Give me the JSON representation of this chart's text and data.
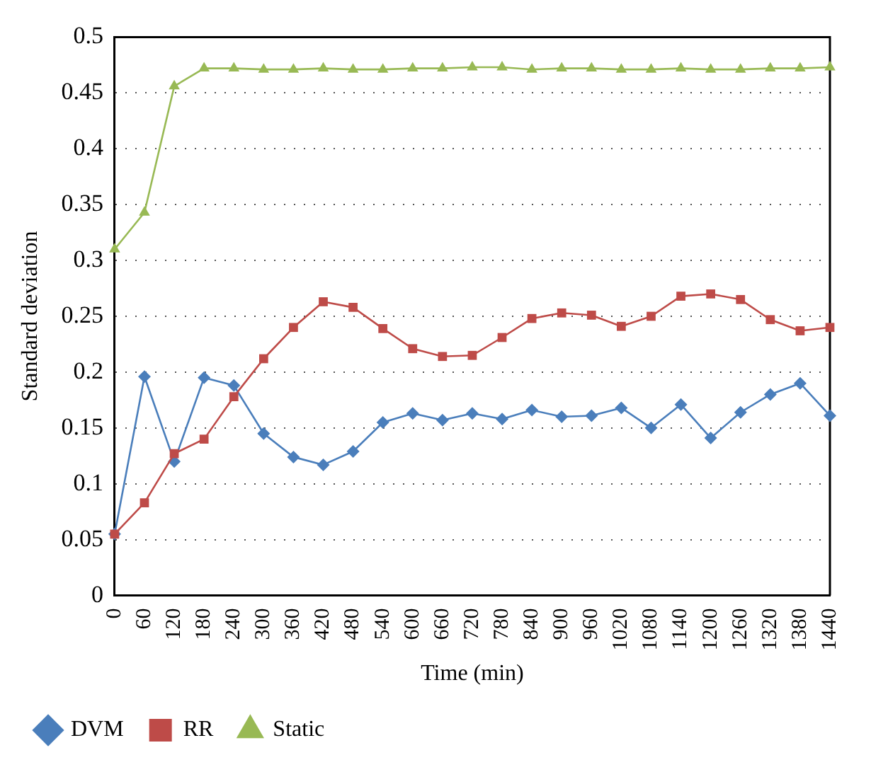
{
  "chart_data": {
    "type": "line",
    "xlabel": "Time (min)",
    "ylabel": "Standard deviation",
    "categories": [
      "0",
      "60",
      "120",
      "180",
      "240",
      "300",
      "360",
      "420",
      "480",
      "540",
      "600",
      "660",
      "720",
      "780",
      "840",
      "900",
      "960",
      "1020",
      "1080",
      "1140",
      "1200",
      "1260",
      "1320",
      "1380",
      "1440"
    ],
    "series": [
      {
        "name": "DVM",
        "color": "#4a7ebb",
        "marker": "diamond",
        "values": [
          0.055,
          0.196,
          0.12,
          0.195,
          0.188,
          0.145,
          0.124,
          0.117,
          0.129,
          0.155,
          0.163,
          0.157,
          0.163,
          0.158,
          0.166,
          0.16,
          0.161,
          0.168,
          0.15,
          0.171,
          0.141,
          0.164,
          0.18,
          0.19,
          0.161
        ]
      },
      {
        "name": "RR",
        "color": "#be4b48",
        "marker": "square",
        "values": [
          0.055,
          0.083,
          0.127,
          0.14,
          0.178,
          0.212,
          0.24,
          0.263,
          0.258,
          0.239,
          0.221,
          0.214,
          0.215,
          0.231,
          0.248,
          0.253,
          0.251,
          0.241,
          0.25,
          0.268,
          0.27,
          0.265,
          0.247,
          0.237,
          0.24
        ]
      },
      {
        "name": "Static",
        "color": "#98b954",
        "marker": "triangle",
        "values": [
          0.31,
          0.343,
          0.456,
          0.472,
          0.472,
          0.471,
          0.471,
          0.472,
          0.471,
          0.471,
          0.472,
          0.472,
          0.473,
          0.473,
          0.471,
          0.472,
          0.472,
          0.471,
          0.471,
          0.472,
          0.471,
          0.471,
          0.472,
          0.472,
          0.473
        ]
      }
    ],
    "ylim": [
      0,
      0.5
    ],
    "yticks": [
      0,
      0.05,
      0.1,
      0.15,
      0.2,
      0.25,
      0.3,
      0.35,
      0.4,
      0.45,
      0.5
    ],
    "grid": "y",
    "legend": "bottom left",
    "line_style": "solid"
  }
}
